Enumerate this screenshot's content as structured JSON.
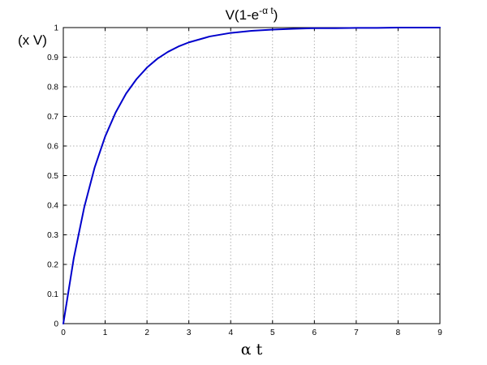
{
  "chart_data": {
    "type": "line",
    "title": {
      "main": "V(1-e",
      "superscript": "-α t",
      "close": ")"
    },
    "xlabel": "α t",
    "ylabel": "(x V)",
    "xlim": [
      0,
      9
    ],
    "ylim": [
      0,
      1
    ],
    "xticks": [
      "0",
      "1",
      "2",
      "3",
      "4",
      "5",
      "6",
      "7",
      "8",
      "9"
    ],
    "yticks": [
      "0",
      "0.1",
      "0.2",
      "0.3",
      "0.4",
      "0.5",
      "0.6",
      "0.7",
      "0.8",
      "0.9",
      "1"
    ],
    "grid": true,
    "series": [
      {
        "color": "#0000cc",
        "x": [
          0,
          0.25,
          0.5,
          0.75,
          1,
          1.25,
          1.5,
          1.75,
          2,
          2.25,
          2.5,
          2.75,
          3,
          3.5,
          4,
          4.5,
          5,
          5.5,
          6,
          6.5,
          7,
          7.5,
          8,
          8.5,
          9
        ],
        "y": [
          0,
          0.221,
          0.393,
          0.528,
          0.632,
          0.713,
          0.777,
          0.826,
          0.865,
          0.895,
          0.918,
          0.936,
          0.95,
          0.97,
          0.982,
          0.989,
          0.993,
          0.996,
          0.998,
          0.998,
          0.999,
          0.999,
          1.0,
          1.0,
          1.0
        ]
      }
    ]
  }
}
